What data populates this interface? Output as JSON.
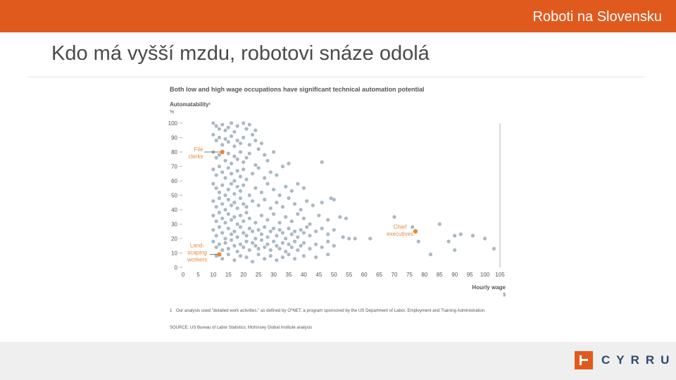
{
  "header": {
    "title": "Roboti na Slovensku"
  },
  "slide": {
    "title": "Kdo má vyšší mzdu, robotovi snáze odolá"
  },
  "colors": {
    "accent": "#e05a1e",
    "points": "#a9b9c4",
    "highlight": "#e8893a",
    "logo_text": "#2c4a6e"
  },
  "logo": {
    "text": "CYRRUS",
    "icon": "cyrrus-logo-mark"
  },
  "chart_data": {
    "type": "scatter",
    "title": "Both low and high wage occupations have significant technical automation potential",
    "ylabel": "Automatability¹",
    "yunit": "%",
    "xlabel": "Hourly wage",
    "xunit": "$",
    "xlim": [
      0,
      105
    ],
    "ylim": [
      0,
      100
    ],
    "xticks": [
      0,
      5,
      10,
      15,
      20,
      25,
      30,
      35,
      40,
      45,
      50,
      55,
      60,
      65,
      70,
      75,
      80,
      85,
      90,
      95,
      100,
      105
    ],
    "yticks": [
      0,
      10,
      20,
      30,
      40,
      50,
      60,
      70,
      80,
      90,
      100
    ],
    "grid": false,
    "highlights": [
      {
        "label": "File clerks",
        "x": 13,
        "y": 80
      },
      {
        "label": "Chief executives",
        "x": 77,
        "y": 25
      },
      {
        "label": "Land-scaping workers",
        "x": 12,
        "y": 9
      }
    ],
    "points": [
      [
        10,
        100
      ],
      [
        11,
        98
      ],
      [
        12,
        96
      ],
      [
        13,
        99
      ],
      [
        14,
        95
      ],
      [
        15,
        97
      ],
      [
        16,
        100
      ],
      [
        17,
        94
      ],
      [
        18,
        98
      ],
      [
        20,
        100
      ],
      [
        21,
        96
      ],
      [
        22,
        99
      ],
      [
        23,
        92
      ],
      [
        24,
        95
      ],
      [
        10,
        92
      ],
      [
        11,
        88
      ],
      [
        12,
        90
      ],
      [
        13,
        85
      ],
      [
        14,
        89
      ],
      [
        15,
        87
      ],
      [
        16,
        91
      ],
      [
        17,
        84
      ],
      [
        18,
        88
      ],
      [
        19,
        86
      ],
      [
        20,
        90
      ],
      [
        22,
        85
      ],
      [
        24,
        88
      ],
      [
        26,
        86
      ],
      [
        10,
        80
      ],
      [
        11,
        76
      ],
      [
        12,
        78
      ],
      [
        14,
        74
      ],
      [
        15,
        79
      ],
      [
        16,
        72
      ],
      [
        17,
        77
      ],
      [
        18,
        75
      ],
      [
        19,
        80
      ],
      [
        20,
        73
      ],
      [
        21,
        76
      ],
      [
        22,
        79
      ],
      [
        24,
        71
      ],
      [
        25,
        82
      ],
      [
        27,
        78
      ],
      [
        28,
        74
      ],
      [
        30,
        80
      ],
      [
        10,
        68
      ],
      [
        11,
        64
      ],
      [
        12,
        70
      ],
      [
        13,
        66
      ],
      [
        14,
        62
      ],
      [
        15,
        69
      ],
      [
        16,
        65
      ],
      [
        17,
        60
      ],
      [
        18,
        67
      ],
      [
        19,
        63
      ],
      [
        20,
        68
      ],
      [
        21,
        61
      ],
      [
        23,
        65
      ],
      [
        25,
        69
      ],
      [
        27,
        62
      ],
      [
        29,
        66
      ],
      [
        31,
        64
      ],
      [
        33,
        70
      ],
      [
        35,
        72
      ],
      [
        10,
        58
      ],
      [
        11,
        55
      ],
      [
        12,
        52
      ],
      [
        13,
        57
      ],
      [
        14,
        50
      ],
      [
        15,
        54
      ],
      [
        16,
        58
      ],
      [
        17,
        51
      ],
      [
        18,
        56
      ],
      [
        19,
        53
      ],
      [
        20,
        57
      ],
      [
        22,
        50
      ],
      [
        24,
        55
      ],
      [
        26,
        52
      ],
      [
        28,
        58
      ],
      [
        30,
        54
      ],
      [
        32,
        50
      ],
      [
        34,
        56
      ],
      [
        36,
        53
      ],
      [
        38,
        58
      ],
      [
        40,
        55
      ],
      [
        10,
        46
      ],
      [
        11,
        42
      ],
      [
        12,
        48
      ],
      [
        13,
        44
      ],
      [
        14,
        40
      ],
      [
        15,
        47
      ],
      [
        16,
        43
      ],
      [
        17,
        45
      ],
      [
        18,
        41
      ],
      [
        19,
        48
      ],
      [
        20,
        44
      ],
      [
        21,
        42
      ],
      [
        23,
        46
      ],
      [
        25,
        43
      ],
      [
        27,
        47
      ],
      [
        29,
        41
      ],
      [
        31,
        45
      ],
      [
        33,
        42
      ],
      [
        35,
        48
      ],
      [
        37,
        44
      ],
      [
        39,
        40
      ],
      [
        41,
        46
      ],
      [
        43,
        43
      ],
      [
        46,
        45
      ],
      [
        49,
        48
      ],
      [
        10,
        36
      ],
      [
        11,
        32
      ],
      [
        12,
        38
      ],
      [
        13,
        34
      ],
      [
        14,
        31
      ],
      [
        15,
        37
      ],
      [
        16,
        33
      ],
      [
        17,
        35
      ],
      [
        18,
        30
      ],
      [
        19,
        36
      ],
      [
        20,
        32
      ],
      [
        21,
        38
      ],
      [
        22,
        34
      ],
      [
        24,
        31
      ],
      [
        26,
        36
      ],
      [
        28,
        33
      ],
      [
        30,
        37
      ],
      [
        32,
        31
      ],
      [
        34,
        35
      ],
      [
        36,
        32
      ],
      [
        38,
        37
      ],
      [
        40,
        34
      ],
      [
        42,
        30
      ],
      [
        45,
        36
      ],
      [
        48,
        33
      ],
      [
        52,
        35
      ],
      [
        10,
        26
      ],
      [
        11,
        22
      ],
      [
        12,
        28
      ],
      [
        13,
        24
      ],
      [
        14,
        20
      ],
      [
        15,
        27
      ],
      [
        16,
        23
      ],
      [
        17,
        25
      ],
      [
        18,
        21
      ],
      [
        19,
        28
      ],
      [
        20,
        24
      ],
      [
        21,
        22
      ],
      [
        22,
        27
      ],
      [
        23,
        25
      ],
      [
        24,
        20
      ],
      [
        25,
        26
      ],
      [
        26,
        23
      ],
      [
        27,
        28
      ],
      [
        28,
        21
      ],
      [
        29,
        25
      ],
      [
        30,
        27
      ],
      [
        31,
        22
      ],
      [
        32,
        26
      ],
      [
        33,
        24
      ],
      [
        34,
        20
      ],
      [
        35,
        27
      ],
      [
        36,
        23
      ],
      [
        37,
        25
      ],
      [
        38,
        21
      ],
      [
        39,
        26
      ],
      [
        40,
        24
      ],
      [
        41,
        28
      ],
      [
        42,
        22
      ],
      [
        44,
        25
      ],
      [
        46,
        27
      ],
      [
        48,
        23
      ],
      [
        50,
        26
      ],
      [
        53,
        21
      ],
      [
        55,
        20
      ],
      [
        10,
        18
      ],
      [
        11,
        14
      ],
      [
        12,
        16
      ],
      [
        13,
        12
      ],
      [
        14,
        17
      ],
      [
        15,
        13
      ],
      [
        16,
        19
      ],
      [
        17,
        15
      ],
      [
        18,
        11
      ],
      [
        19,
        16
      ],
      [
        20,
        14
      ],
      [
        21,
        18
      ],
      [
        22,
        12
      ],
      [
        23,
        17
      ],
      [
        24,
        15
      ],
      [
        25,
        13
      ],
      [
        26,
        19
      ],
      [
        27,
        14
      ],
      [
        28,
        16
      ],
      [
        29,
        12
      ],
      [
        30,
        18
      ],
      [
        31,
        15
      ],
      [
        32,
        13
      ],
      [
        33,
        17
      ],
      [
        34,
        11
      ],
      [
        35,
        16
      ],
      [
        36,
        14
      ],
      [
        37,
        18
      ],
      [
        38,
        12
      ],
      [
        39,
        15
      ],
      [
        40,
        17
      ],
      [
        42,
        13
      ],
      [
        44,
        16
      ],
      [
        46,
        14
      ],
      [
        48,
        18
      ],
      [
        50,
        15
      ],
      [
        11,
        8
      ],
      [
        13,
        6
      ],
      [
        15,
        9
      ],
      [
        17,
        5
      ],
      [
        19,
        8
      ],
      [
        21,
        7
      ],
      [
        23,
        4
      ],
      [
        25,
        9
      ],
      [
        27,
        6
      ],
      [
        29,
        8
      ],
      [
        31,
        5
      ],
      [
        33,
        7
      ],
      [
        35,
        9
      ],
      [
        37,
        6
      ],
      [
        40,
        8
      ],
      [
        44,
        7
      ],
      [
        48,
        9
      ],
      [
        46,
        73
      ],
      [
        50,
        47
      ],
      [
        54,
        34
      ],
      [
        57,
        20
      ],
      [
        62,
        20
      ],
      [
        70,
        35
      ],
      [
        76,
        28
      ],
      [
        78,
        18
      ],
      [
        82,
        9
      ],
      [
        85,
        30
      ],
      [
        88,
        18
      ],
      [
        90,
        22
      ],
      [
        92,
        23
      ],
      [
        96,
        22
      ],
      [
        100,
        20
      ],
      [
        103,
        13
      ],
      [
        90,
        12
      ]
    ]
  },
  "notes": {
    "footnote_marker": "1",
    "footnote": "Our analysis used \"detailed work activities,\" as defined by O*NET, a program sponsored by the US Department of Labor, Employment and Training Administration.",
    "source": "SOURCE: US Bureau of Labor Statistics; McKinsey Global Institute analysis"
  }
}
